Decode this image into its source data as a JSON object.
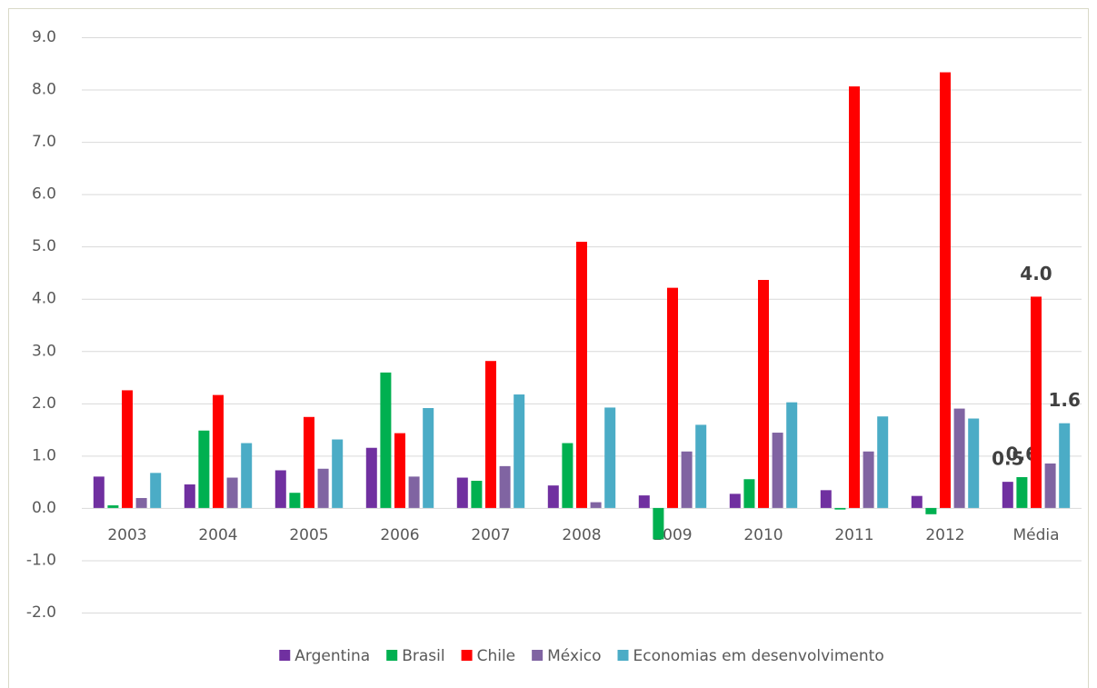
{
  "chart_data": {
    "type": "bar",
    "categories": [
      "2003",
      "2004",
      "2005",
      "2006",
      "2007",
      "2008",
      "2009",
      "2010",
      "2011",
      "2012",
      "Média"
    ],
    "series": [
      {
        "name": "Argentina",
        "color": "#7030a0",
        "values": [
          0.6,
          0.45,
          0.72,
          1.15,
          0.58,
          0.43,
          0.24,
          0.27,
          0.34,
          0.23,
          0.5
        ],
        "value_labels": [
          null,
          null,
          null,
          null,
          null,
          null,
          null,
          null,
          null,
          null,
          "0.5"
        ]
      },
      {
        "name": "Brasil",
        "color": "#00b050",
        "values": [
          0.05,
          1.48,
          0.29,
          2.59,
          0.52,
          1.24,
          -0.6,
          0.55,
          -0.03,
          -0.12,
          0.59
        ],
        "value_labels": [
          null,
          null,
          null,
          null,
          null,
          null,
          null,
          null,
          null,
          null,
          "0.6"
        ]
      },
      {
        "name": "Chile",
        "color": "#ff0000",
        "values": [
          2.25,
          2.16,
          1.74,
          1.43,
          2.81,
          5.09,
          4.21,
          4.36,
          8.06,
          8.33,
          4.04
        ],
        "value_labels": [
          null,
          null,
          null,
          null,
          null,
          null,
          null,
          null,
          null,
          null,
          "4.0"
        ]
      },
      {
        "name": "México",
        "color": "#8064a2",
        "values": [
          0.19,
          0.58,
          0.75,
          0.6,
          0.8,
          0.11,
          1.08,
          1.44,
          1.08,
          1.9,
          0.85
        ]
      },
      {
        "name": "Economias em desenvolvimento",
        "color": "#4bacc6",
        "values": [
          0.67,
          1.24,
          1.31,
          1.91,
          2.17,
          1.92,
          1.59,
          2.02,
          1.75,
          1.71,
          1.62
        ],
        "value_labels": [
          null,
          null,
          null,
          null,
          null,
          null,
          null,
          null,
          null,
          null,
          "1.6"
        ]
      }
    ],
    "ylim": [
      -2,
      9
    ],
    "yticks": [
      {
        "value": -2,
        "label": "-2.0"
      },
      {
        "value": -1,
        "label": "-1.0"
      },
      {
        "value": 0,
        "label": "0.0"
      },
      {
        "value": 1,
        "label": "1.0"
      },
      {
        "value": 2,
        "label": "2.0"
      },
      {
        "value": 3,
        "label": "3.0"
      },
      {
        "value": 4,
        "label": "4.0"
      },
      {
        "value": 5,
        "label": "5.0"
      },
      {
        "value": 6,
        "label": "6.0"
      },
      {
        "value": 7,
        "label": "7.0"
      },
      {
        "value": 8,
        "label": "8.0"
      },
      {
        "value": 9,
        "label": "9.0"
      }
    ],
    "grid": true,
    "legend": "bottom"
  }
}
